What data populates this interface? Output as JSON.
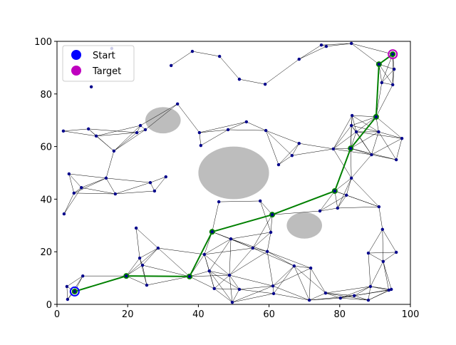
{
  "chart_data": {
    "type": "scatter",
    "xlim": [
      0,
      100
    ],
    "ylim": [
      0,
      100
    ],
    "xticks": [
      0,
      20,
      40,
      60,
      80,
      100
    ],
    "yticks": [
      0,
      20,
      40,
      60,
      80,
      100
    ],
    "obstacles": [
      {
        "x": 50,
        "y": 50,
        "r": 10
      },
      {
        "x": 30,
        "y": 70,
        "r": 5
      },
      {
        "x": 70,
        "y": 30,
        "r": 5
      }
    ],
    "obstacle_color": "#bdbdbd",
    "nodes": {
      "color": "#00008b",
      "x": [
        15.5,
        9.7,
        38.3,
        46,
        32.3,
        51.6,
        58.9,
        68.5,
        74.8,
        76.2,
        83.3,
        95,
        91.1,
        95.4,
        91.9,
        95,
        34.1,
        1.8,
        8.9,
        11.1,
        16.1,
        23.6,
        22.6,
        25,
        40.3,
        40.7,
        48.4,
        53.6,
        59.1,
        62.7,
        66.5,
        68.5,
        3.4,
        4.8,
        6.9,
        13.9,
        16.5,
        26.4,
        27.6,
        30.8,
        2,
        22.4,
        45.8,
        57.5,
        60.9,
        60.5,
        74.4,
        78.6,
        79.4,
        81.9,
        78.2,
        83.1,
        83.5,
        83.3,
        84.7,
        90.3,
        91,
        89,
        96,
        97.6,
        83.3,
        91.1,
        92.1,
        96,
        92.3,
        88.1,
        88.7,
        88.1,
        93.9,
        94.6,
        76,
        80.2,
        84.1,
        71.8,
        71.4,
        67.1,
        61.3,
        61.1,
        55.4,
        59.5,
        49.6,
        51.6,
        49.2,
        48.8,
        43.9,
        41.7,
        44.5,
        43.1,
        37.5,
        28.6,
        23.4,
        24.2,
        25.4,
        19.6,
        7.3,
        2.8,
        3,
        5
      ],
      "y": [
        97.3,
        82.7,
        96.2,
        94.3,
        90.8,
        85.6,
        83.7,
        93.2,
        98.6,
        98.1,
        99.2,
        95.1,
        91.3,
        89.4,
        84.3,
        83.5,
        76.2,
        65.9,
        66.7,
        64,
        58.3,
        68,
        65.3,
        66.4,
        65.3,
        60.4,
        66.4,
        69.4,
        66.1,
        53.1,
        56.6,
        61.2,
        49.6,
        42.3,
        44.4,
        48,
        42,
        46.3,
        43.1,
        48.5,
        34.4,
        29,
        39,
        39.3,
        34.1,
        27.4,
        35.5,
        43.1,
        36.6,
        41.5,
        59.1,
        59.3,
        71.8,
        68,
        65.6,
        71.3,
        65.6,
        56.9,
        55,
        63.1,
        48,
        37.1,
        28.5,
        19.8,
        16.3,
        19.5,
        6.8,
        1.6,
        5.4,
        5.7,
        4.3,
        2.4,
        3.3,
        13.8,
        1.6,
        14.6,
        4.1,
        7,
        21.4,
        20.1,
        0.8,
        5.7,
        24.9,
        11.1,
        27.6,
        19,
        6,
        12.7,
        10.6,
        21.4,
        17.6,
        14.9,
        7.3,
        10.8,
        10.8,
        6.8,
        1.9,
        4.9
      ]
    },
    "path": {
      "color": "#008000",
      "x": [
        5,
        19.6,
        37.5,
        43.9,
        60.9,
        78.6,
        83.1,
        90.3,
        91.1,
        95
      ],
      "y": [
        4.9,
        10.8,
        10.6,
        27.6,
        34.1,
        43.1,
        59.3,
        71.3,
        91.3,
        95.1
      ]
    },
    "start": {
      "name": "Start",
      "x": 5,
      "y": 4.9,
      "color": "#0000ff"
    },
    "target": {
      "name": "Target",
      "x": 95,
      "y": 95.1,
      "color": "#bf00bf"
    },
    "legend_loc": "upper left"
  }
}
